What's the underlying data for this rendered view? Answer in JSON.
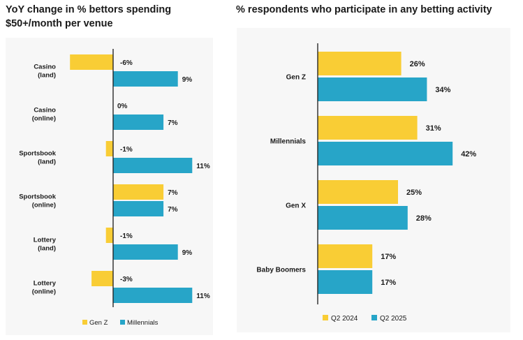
{
  "colors": {
    "gen_z": "#F9CD35",
    "q2_2024": "#F9CD35",
    "millennials": "#27A5C8",
    "q2_2025": "#27A5C8",
    "axis": "#1a1a1a",
    "panel_bg": "#f7f7f7"
  },
  "chart_data": [
    {
      "type": "bar",
      "orientation": "horizontal",
      "title": "YoY change in % bettors spending $50+/month per venue",
      "categories": [
        "Casino\n(land)",
        "Casino\n(online)",
        "Sportsbook\n(land)",
        "Sportsbook\n(online)",
        "Lottery\n(land)",
        "Lottery\n(online)"
      ],
      "series": [
        {
          "name": "Gen Z",
          "color": "#F9CD35",
          "values": [
            -6,
            0,
            -1,
            7,
            -1,
            -3
          ],
          "labels": [
            "-6%",
            "0%",
            "-1%",
            "7%",
            "-1%",
            "-3%"
          ]
        },
        {
          "name": "Millennials",
          "color": "#27A5C8",
          "values": [
            9,
            7,
            11,
            7,
            9,
            11
          ],
          "labels": [
            "9%",
            "7%",
            "11%",
            "7%",
            "9%",
            "11%"
          ]
        }
      ],
      "xlim": [
        -6.2,
        10.7
      ],
      "grid": false,
      "legend": "bottom"
    },
    {
      "type": "bar",
      "orientation": "horizontal",
      "title": "% respondents who participate in any betting activity",
      "categories": [
        "Gen Z",
        "Millennials",
        "Gen X",
        "Baby Boomers"
      ],
      "series": [
        {
          "name": "Q2 2024",
          "color": "#F9CD35",
          "values": [
            26,
            31,
            25,
            17
          ],
          "labels": [
            "26%",
            "31%",
            "25%",
            "17%"
          ]
        },
        {
          "name": "Q2 2025",
          "color": "#27A5C8",
          "values": [
            34,
            42,
            28,
            17
          ],
          "labels": [
            "34%",
            "42%",
            "28%",
            "17%"
          ]
        }
      ],
      "xlim": [
        0,
        43
      ],
      "grid": false,
      "legend": "bottom"
    }
  ]
}
